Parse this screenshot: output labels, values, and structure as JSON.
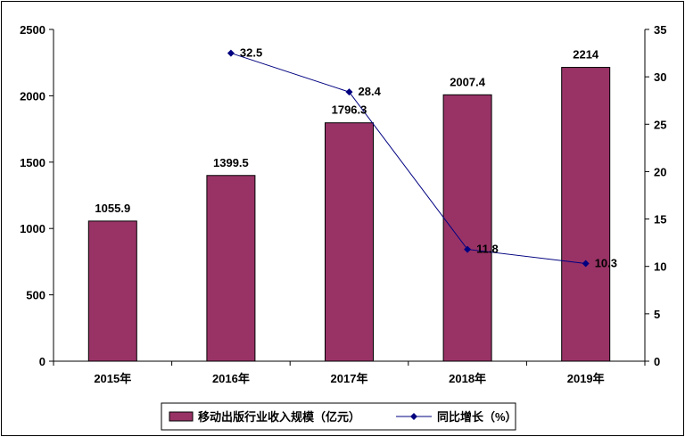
{
  "chart_data": {
    "type": "bar",
    "categories": [
      "2015年",
      "2016年",
      "2017年",
      "2018年",
      "2019年"
    ],
    "series": [
      {
        "name": "移动出版行业收入规模（亿元）",
        "type": "bar",
        "axis": "left",
        "values": [
          1055.9,
          1399.5,
          1796.3,
          2007.4,
          2214
        ],
        "labels": [
          "1055.9",
          "1399.5",
          "1796.3",
          "2007.4",
          "2214"
        ]
      },
      {
        "name": "同比增长（%）",
        "type": "line",
        "axis": "right",
        "values": [
          null,
          32.5,
          28.4,
          11.8,
          10.3
        ],
        "labels": [
          "",
          "32.5",
          "28.4",
          "11.8",
          "10.3"
        ]
      }
    ],
    "y_left": {
      "lim": [
        0,
        2500
      ],
      "ticks": [
        0,
        500,
        1000,
        1500,
        2000,
        2500
      ]
    },
    "y_right": {
      "lim": [
        0,
        35
      ],
      "ticks": [
        0,
        5,
        10,
        15,
        20,
        25,
        30,
        35
      ]
    },
    "legend_position": "bottom",
    "grid": false,
    "colors": {
      "bar": "#993366",
      "line": "#000080"
    }
  }
}
